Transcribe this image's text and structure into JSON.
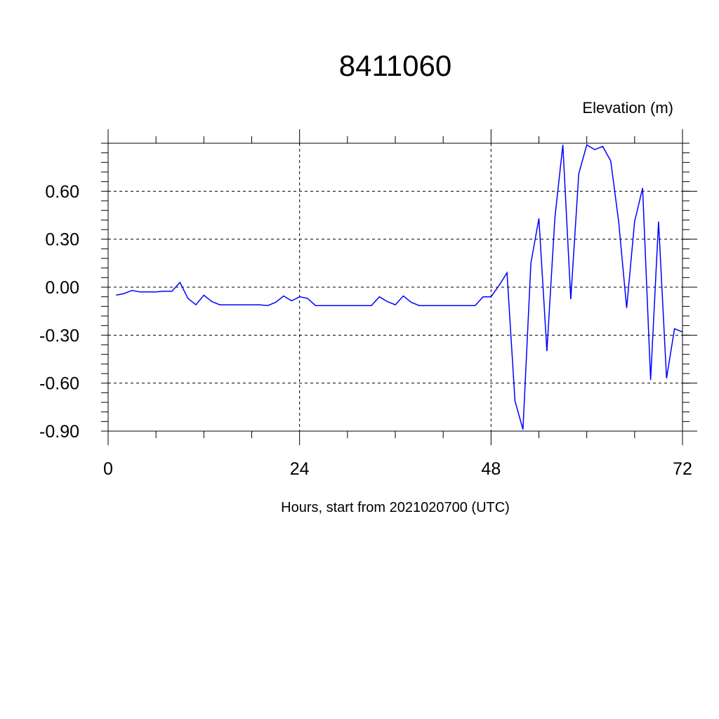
{
  "chart_data": {
    "type": "line",
    "title": "8411060",
    "ylabel": "Elevation (m)",
    "xlabel": "Hours, start from 2021020700 (UTC)",
    "xlim": [
      0,
      72
    ],
    "ylim": [
      -0.9,
      0.9
    ],
    "x_ticks": [
      0,
      24,
      48,
      72
    ],
    "x_tick_labels": [
      "0",
      "24",
      "48",
      "72"
    ],
    "y_ticks": [
      -0.9,
      -0.6,
      -0.3,
      0.0,
      0.3,
      0.6
    ],
    "y_tick_labels": [
      "-0.90",
      "-0.60",
      "-0.30",
      "0.00",
      "0.30",
      "0.60"
    ],
    "grid": true,
    "series": [
      {
        "color": "#0000ff",
        "x": [
          1,
          2,
          3,
          4,
          5,
          6,
          7,
          8,
          9,
          10,
          11,
          12,
          13,
          14,
          15,
          16,
          17,
          18,
          19,
          20,
          21,
          22,
          23,
          24,
          25,
          26,
          27,
          28,
          29,
          30,
          31,
          32,
          33,
          34,
          35,
          36,
          37,
          38,
          39,
          40,
          41,
          42,
          43,
          44,
          45,
          46,
          47,
          48,
          49,
          50,
          51,
          52,
          53,
          54,
          55,
          56,
          57,
          58,
          59,
          60,
          61,
          62,
          63,
          64,
          65,
          66,
          67,
          68,
          69,
          70,
          71,
          72
        ],
        "values": [
          -0.05,
          -0.04,
          -0.02,
          -0.03,
          -0.03,
          -0.03,
          -0.025,
          -0.025,
          0.03,
          -0.07,
          -0.11,
          -0.05,
          -0.09,
          -0.11,
          -0.11,
          -0.11,
          -0.11,
          -0.11,
          -0.11,
          -0.115,
          -0.095,
          -0.055,
          -0.085,
          -0.06,
          -0.07,
          -0.115,
          -0.115,
          -0.115,
          -0.115,
          -0.115,
          -0.115,
          -0.115,
          -0.115,
          -0.06,
          -0.09,
          -0.11,
          -0.055,
          -0.095,
          -0.115,
          -0.115,
          -0.115,
          -0.115,
          -0.115,
          -0.115,
          -0.115,
          -0.115,
          -0.06,
          -0.06,
          0.01,
          0.09,
          -0.71,
          -0.89,
          0.15,
          0.43,
          -0.4,
          0.43,
          0.89,
          -0.075,
          0.71,
          0.89,
          0.86,
          0.88,
          0.79,
          0.41,
          -0.13,
          0.41,
          0.62,
          -0.58,
          0.41,
          -0.57,
          -0.26,
          -0.28
        ]
      }
    ]
  }
}
